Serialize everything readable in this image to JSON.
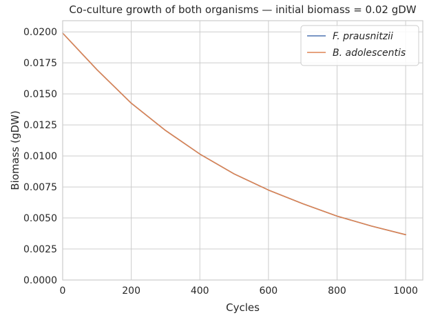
{
  "chart_data": {
    "type": "line",
    "title": "Co-culture growth of both organisms — initial biomass = 0.02 gDW",
    "xlabel": "Cycles",
    "ylabel": "Biomass (gDW)",
    "xlim": [
      0,
      1050
    ],
    "ylim": [
      0,
      0.0209
    ],
    "x_ticks": [
      0,
      200,
      400,
      600,
      800,
      1000
    ],
    "x_tick_labels": [
      "0",
      "200",
      "400",
      "600",
      "800",
      "1000"
    ],
    "y_ticks": [
      0,
      0.0025,
      0.005,
      0.0075,
      0.01,
      0.0125,
      0.015,
      0.0175,
      0.02
    ],
    "y_tick_labels": [
      "0.0000",
      "0.0025",
      "0.0050",
      "0.0075",
      "0.0100",
      "0.0125",
      "0.0150",
      "0.0175",
      "0.0200"
    ],
    "grid": true,
    "legend_position": "top-right",
    "x": [
      0,
      100,
      200,
      300,
      400,
      500,
      600,
      700,
      800,
      900,
      1000
    ],
    "series": [
      {
        "name": "F. prausnitzii",
        "color": "#4c72b0",
        "values": [
          0.0199,
          0.01695,
          0.01425,
          0.01205,
          0.01015,
          0.00855,
          0.00725,
          0.00615,
          0.00515,
          0.00435,
          0.00365
        ]
      },
      {
        "name": "B. adolescentis",
        "color": "#dd8452",
        "values": [
          0.0199,
          0.01695,
          0.01425,
          0.01205,
          0.01015,
          0.00855,
          0.00725,
          0.00615,
          0.00515,
          0.00435,
          0.00365
        ]
      }
    ]
  }
}
